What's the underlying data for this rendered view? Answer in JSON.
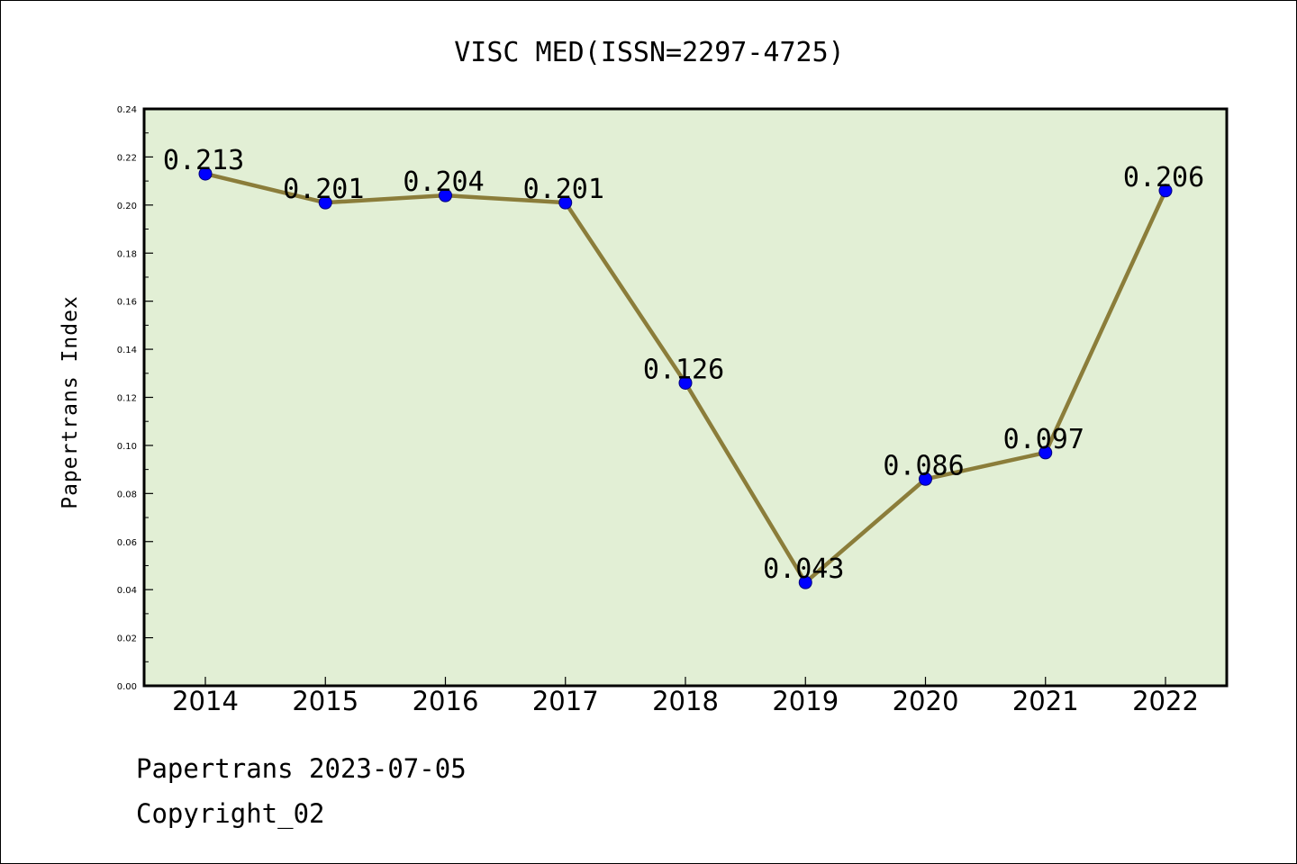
{
  "chart_data": {
    "type": "line",
    "title": "VISC MED(ISSN=2297-4725)",
    "xlabel": "",
    "ylabel": "Papertrans Index",
    "categories": [
      "2014",
      "2015",
      "2016",
      "2017",
      "2018",
      "2019",
      "2020",
      "2021",
      "2022"
    ],
    "series": [
      {
        "values": [
          0.213,
          0.201,
          0.204,
          0.201,
          0.126,
          0.043,
          0.086,
          0.097,
          0.206
        ]
      }
    ],
    "data_labels": [
      "0.213",
      "0.201",
      "0.204",
      "0.201",
      "0.126",
      "0.043",
      "0.086",
      "0.097",
      "0.206"
    ],
    "ylim": [
      0.0,
      0.24
    ],
    "yticks": [
      "0.00",
      "0.02",
      "0.04",
      "0.06",
      "0.08",
      "0.10",
      "0.12",
      "0.14",
      "0.16",
      "0.18",
      "0.20",
      "0.22",
      "0.24"
    ],
    "grid": false,
    "legend": "none",
    "colors": {
      "plot_background": "#e2efd5",
      "line": "#8b7d3a",
      "marker": "#0000ff"
    }
  },
  "footer": {
    "source": "Papertrans 2023-07-05",
    "copyright": "Copyright_02"
  }
}
